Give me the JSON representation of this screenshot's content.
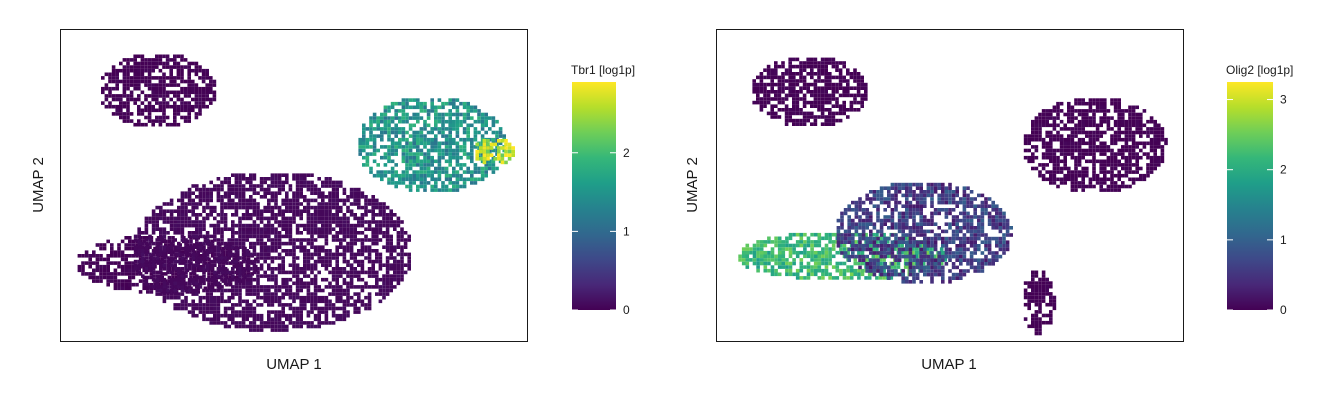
{
  "colors": {
    "viridis": [
      "#440154",
      "#482878",
      "#3e4989",
      "#31688e",
      "#26828e",
      "#1f9e89",
      "#35b779",
      "#6ece58",
      "#b5de2b",
      "#fde725"
    ],
    "frame": "#1a1a1a",
    "background": "#ffffff"
  },
  "chart_data": [
    {
      "type": "scatter",
      "title": "",
      "xlabel": "UMAP 1",
      "ylabel": "UMAP 2",
      "legend_title": "Tbr1 [log1p]",
      "legend_placement": "right",
      "color_range": [
        0,
        2.9
      ],
      "legend_ticks": [
        {
          "value": 0,
          "label": "0"
        },
        {
          "value": 1,
          "label": "1"
        },
        {
          "value": 2,
          "label": "2"
        }
      ],
      "grid": false,
      "axis_ticks": false,
      "xlim": [
        0,
        10
      ],
      "ylim": [
        0,
        10
      ],
      "regions": [
        {
          "cluster": "upper-left arm",
          "x": [
            0.8,
            3.3
          ],
          "y": [
            6.9,
            9.3
          ],
          "expression": 0.0
        },
        {
          "cluster": "left arm",
          "x": [
            0.3,
            4.2
          ],
          "y": [
            1.6,
            3.5
          ],
          "expression": 0.0
        },
        {
          "cluster": "center",
          "x": [
            1.5,
            7.5
          ],
          "y": [
            0.4,
            5.5
          ],
          "expression": 0.05
        },
        {
          "cluster": "upper-right lobe",
          "x": [
            6.3,
            9.5
          ],
          "y": [
            4.8,
            7.9
          ],
          "expression": 1.5
        },
        {
          "cluster": "upper-right lobe tip",
          "x": [
            8.8,
            9.7
          ],
          "y": [
            5.7,
            6.6
          ],
          "expression": 2.6
        }
      ]
    },
    {
      "type": "scatter",
      "title": "",
      "xlabel": "UMAP 1",
      "ylabel": "UMAP 2",
      "legend_title": "Olig2 [log1p]",
      "legend_placement": "right",
      "color_range": [
        0,
        3.25
      ],
      "legend_ticks": [
        {
          "value": 0,
          "label": "0"
        },
        {
          "value": 1,
          "label": "1"
        },
        {
          "value": 2,
          "label": "2"
        },
        {
          "value": 3,
          "label": "3"
        }
      ],
      "grid": false,
      "axis_ticks": false,
      "xlim": [
        0,
        10
      ],
      "ylim": [
        0,
        10
      ],
      "regions": [
        {
          "cluster": "upper-left arm",
          "x": [
            0.7,
            3.2
          ],
          "y": [
            6.9,
            9.2
          ],
          "expression": 0.0
        },
        {
          "cluster": "left arm",
          "x": [
            0.4,
            4.9
          ],
          "y": [
            2.0,
            3.6
          ],
          "expression": 2.2
        },
        {
          "cluster": "center",
          "x": [
            2.5,
            6.3
          ],
          "y": [
            1.9,
            5.2
          ],
          "expression": 0.6
        },
        {
          "cluster": "upper-right lobe",
          "x": [
            6.5,
            9.6
          ],
          "y": [
            4.8,
            7.9
          ],
          "expression": 0.0
        },
        {
          "cluster": "bottom tail",
          "x": [
            6.5,
            7.2
          ],
          "y": [
            0.3,
            2.4
          ],
          "expression": 0.0
        }
      ]
    }
  ]
}
